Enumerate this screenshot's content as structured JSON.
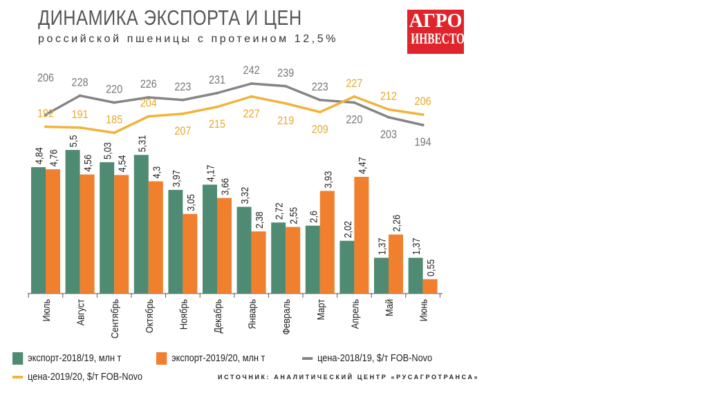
{
  "title": "ДИНАМИКА ЭКСПОРТА И ЦЕН",
  "subtitle": "российской пшеницы с протеином 12,5%",
  "logo": {
    "line1": "АГРО",
    "line2": "ИНВЕСТОР",
    "color": "#e0242c"
  },
  "source": "ИСТОЧНИК: АНАЛИТИЧЕСКИЙ ЦЕНТР «РУСАГРОТРАНСА»",
  "chart_data": {
    "type": "bar+line",
    "categories": [
      "Июль",
      "Август",
      "Сентябрь",
      "Октябрь",
      "Ноябрь",
      "Декабрь",
      "Январь",
      "Февраль",
      "Март",
      "Апрель",
      "Май",
      "Июнь"
    ],
    "bar_series": [
      {
        "name": "экспорт-2018/19, млн т",
        "color": "#4f8a73",
        "values": [
          4.84,
          5.5,
          5.03,
          5.31,
          3.97,
          4.17,
          3.32,
          2.72,
          2.6,
          2.02,
          1.37,
          1.37
        ],
        "labels": [
          "4,84",
          "5,5",
          "5,03",
          "5,31",
          "3,97",
          "4,17",
          "3,32",
          "2,72",
          "2,6",
          "2,02",
          "1,37",
          "1,37"
        ]
      },
      {
        "name": "экспорт-2019/20, млн т",
        "color": "#f07f2e",
        "values": [
          4.76,
          4.56,
          4.54,
          4.3,
          3.05,
          3.66,
          2.38,
          2.55,
          3.93,
          4.47,
          2.26,
          0.55
        ],
        "labels": [
          "4,76",
          "4,56",
          "4,54",
          "4,3",
          "3,05",
          "3,66",
          "2,38",
          "2,55",
          "3,93",
          "4,47",
          "2,26",
          "0,55"
        ]
      }
    ],
    "line_series": [
      {
        "name": "цена-2018/19, $/т FOB-Novo",
        "color": "#858585",
        "values": [
          206,
          228,
          220,
          226,
          223,
          231,
          242,
          239,
          223,
          220,
          203,
          194
        ]
      },
      {
        "name": "цена-2019/20, $/т FOB-Novo",
        "color": "#f0b43a",
        "values": [
          192,
          191,
          185,
          204,
          207,
          215,
          227,
          219,
          209,
          227,
          212,
          206
        ]
      }
    ],
    "grid": false,
    "legend": "bottom"
  }
}
